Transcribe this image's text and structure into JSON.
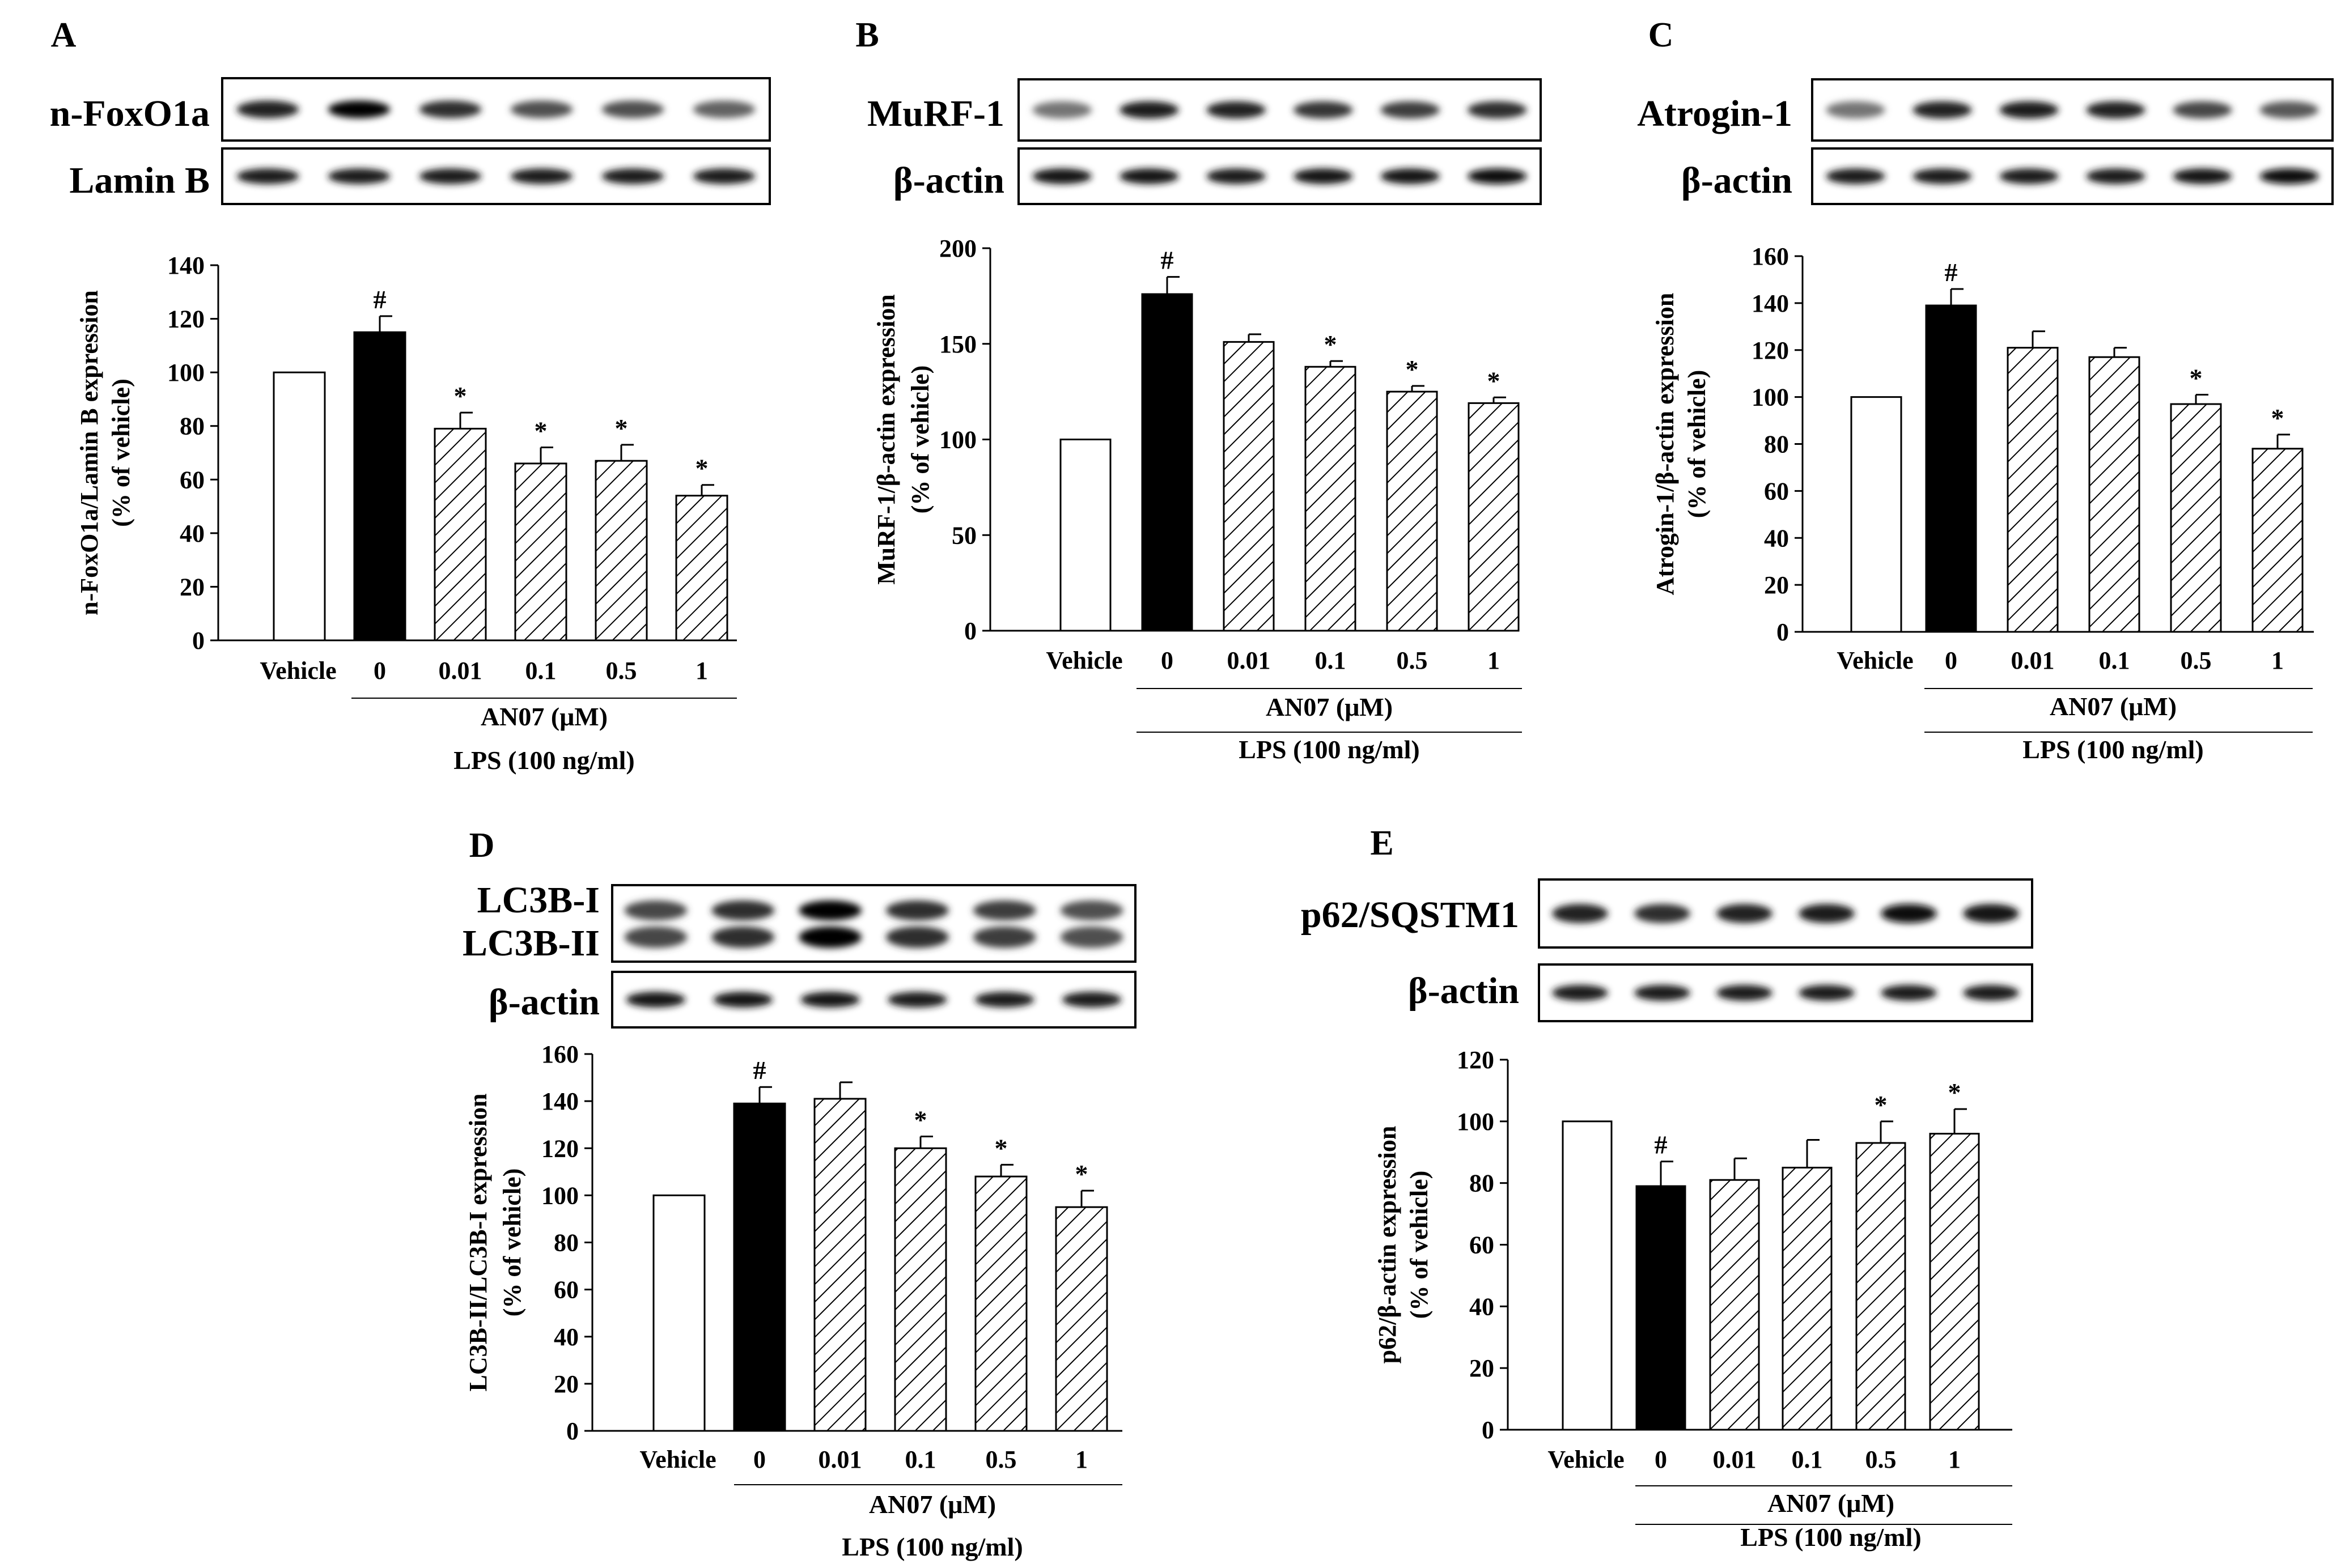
{
  "figure": {
    "x_axis_groups": {
      "categories": [
        "Vehicle",
        "0",
        "0.01",
        "0.1",
        "0.5",
        "1"
      ],
      "drug_label": "AN07 (μM)",
      "stimulus_label": "LPS (100 ng/ml)"
    }
  },
  "chart_data": [
    {
      "panel": "A",
      "type": "bar",
      "blot_labels": [
        "n-FoxO1a",
        "Lamin B"
      ],
      "ylabel_line1": "n-FoxO1a/Lamin B expression",
      "ylabel_line2": "(% of vehicle)",
      "ylim": [
        0,
        140
      ],
      "ytick_step": 20,
      "yticks": [
        "0",
        "20",
        "40",
        "60",
        "80",
        "100",
        "120",
        "140"
      ],
      "categories": [
        "Vehicle",
        "0",
        "0.01",
        "0.1",
        "0.5",
        "1"
      ],
      "values": [
        100,
        115,
        79,
        66,
        67,
        54
      ],
      "errors": [
        0,
        6,
        6,
        6,
        6,
        4
      ],
      "markers": [
        "",
        "#",
        "*",
        "*",
        "*",
        "*"
      ],
      "bar_styles": [
        "white",
        "black",
        "hatch",
        "hatch",
        "hatch",
        "hatch"
      ]
    },
    {
      "panel": "B",
      "type": "bar",
      "blot_labels": [
        "MuRF-1",
        "β-actin"
      ],
      "ylabel_line1": "MuRF-1/β-actin expression",
      "ylabel_line2": "(% of vehicle)",
      "ylim": [
        0,
        200
      ],
      "ytick_step": 50,
      "yticks": [
        "0",
        "50",
        "100",
        "150",
        "200"
      ],
      "categories": [
        "Vehicle",
        "0",
        "0.01",
        "0.1",
        "0.5",
        "1"
      ],
      "values": [
        100,
        176,
        151,
        138,
        125,
        119
      ],
      "errors": [
        0,
        9,
        4,
        3,
        3,
        3
      ],
      "markers": [
        "",
        "#",
        "",
        "*",
        "*",
        "*"
      ],
      "bar_styles": [
        "white",
        "black",
        "hatch",
        "hatch",
        "hatch",
        "hatch"
      ]
    },
    {
      "panel": "C",
      "type": "bar",
      "blot_labels": [
        "Atrogin-1",
        "β-actin"
      ],
      "ylabel_line1": "Atrogin-1/β-actin expression",
      "ylabel_line2": "(% of vehicle)",
      "ylim": [
        0,
        160
      ],
      "ytick_step": 20,
      "yticks": [
        "0",
        "20",
        "40",
        "60",
        "80",
        "100",
        "120",
        "140",
        "160"
      ],
      "categories": [
        "Vehicle",
        "0",
        "0.01",
        "0.1",
        "0.5",
        "1"
      ],
      "values": [
        100,
        139,
        121,
        117,
        97,
        78
      ],
      "errors": [
        0,
        7,
        7,
        4,
        4,
        6
      ],
      "markers": [
        "",
        "#",
        "",
        "",
        "*",
        "*"
      ],
      "bar_styles": [
        "white",
        "black",
        "hatch",
        "hatch",
        "hatch",
        "hatch"
      ]
    },
    {
      "panel": "D",
      "type": "bar",
      "blot_labels": [
        "LC3B-I",
        "LC3B-II",
        "β-actin"
      ],
      "ylabel_line1": "LC3B-II/LC3B-I expression",
      "ylabel_line2": "(% of vehicle)",
      "ylim": [
        0,
        160
      ],
      "ytick_step": 20,
      "yticks": [
        "0",
        "20",
        "40",
        "60",
        "80",
        "100",
        "120",
        "140",
        "160"
      ],
      "categories": [
        "Vehicle",
        "0",
        "0.01",
        "0.1",
        "0.5",
        "1"
      ],
      "values": [
        100,
        139,
        141,
        120,
        108,
        95
      ],
      "errors": [
        0,
        7,
        7,
        5,
        5,
        7
      ],
      "markers": [
        "",
        "#",
        "",
        "*",
        "*",
        "*"
      ],
      "bar_styles": [
        "white",
        "black",
        "hatch",
        "hatch",
        "hatch",
        "hatch"
      ]
    },
    {
      "panel": "E",
      "type": "bar",
      "blot_labels": [
        "p62/SQSTM1",
        "β-actin"
      ],
      "ylabel_line1": "p62/β-actin expression",
      "ylabel_line2": "(% of vehicle)",
      "ylim": [
        0,
        120
      ],
      "ytick_step": 20,
      "yticks": [
        "0",
        "20",
        "40",
        "60",
        "80",
        "100",
        "120"
      ],
      "categories": [
        "Vehicle",
        "0",
        "0.01",
        "0.1",
        "0.5",
        "1"
      ],
      "values": [
        100,
        79,
        81,
        85,
        93,
        96
      ],
      "errors": [
        0,
        8,
        7,
        9,
        7,
        8
      ],
      "markers": [
        "",
        "#",
        "",
        "",
        "*",
        "*"
      ],
      "bar_styles": [
        "white",
        "black",
        "hatch",
        "hatch",
        "hatch",
        "hatch"
      ]
    }
  ]
}
